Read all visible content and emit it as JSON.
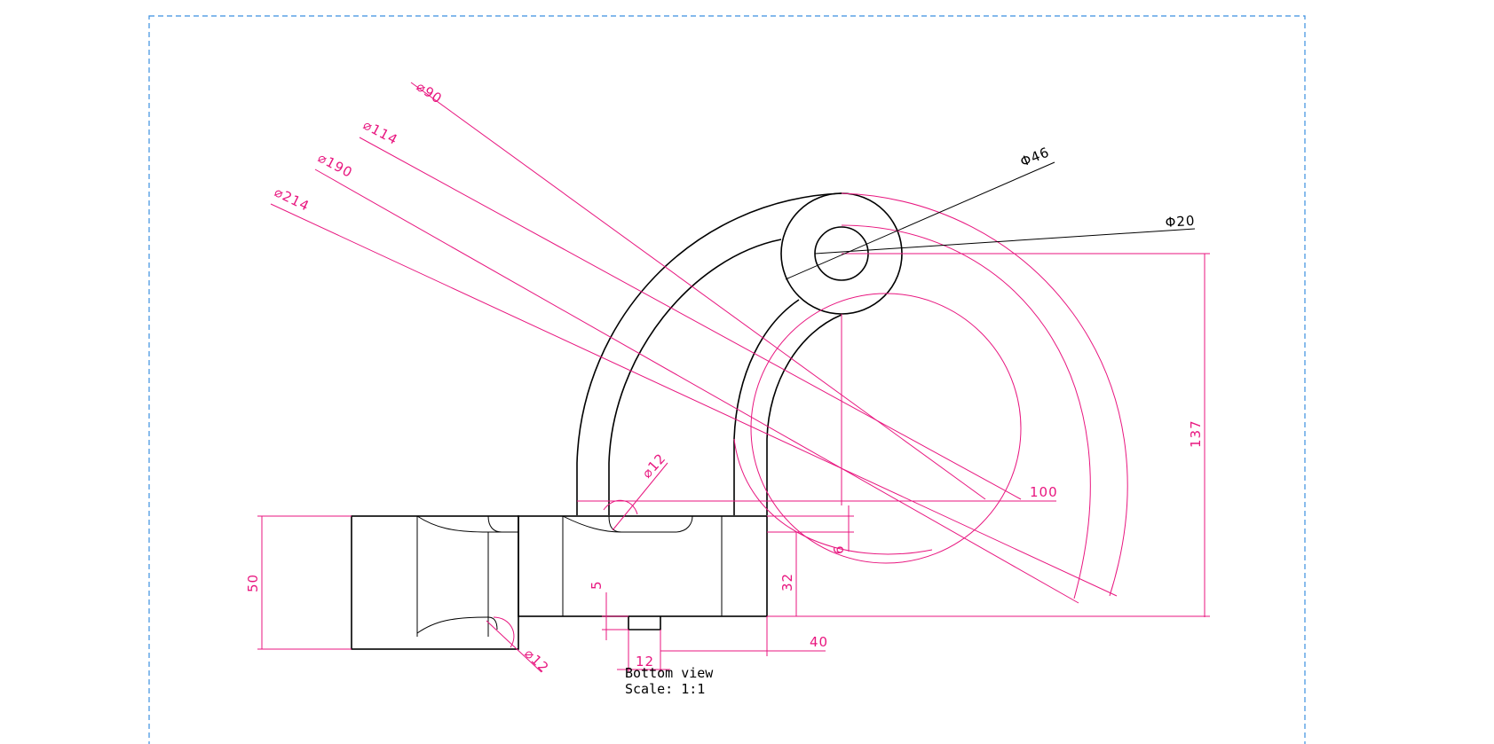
{
  "view": {
    "caption_line1": "Bottom view",
    "caption_line2": "Scale:  1:1"
  },
  "colors": {
    "dimension": "#e8167f",
    "geometry": "#000000",
    "frame": "#3b8fe0"
  },
  "dimensions": {
    "d90": "⌀90",
    "d114": "⌀114",
    "d190": "⌀190",
    "d214": "⌀214",
    "phi46": "Φ46",
    "phi20": "Φ20",
    "d12_top": "⌀12",
    "d12_bottom": "⌀12",
    "len100": "100",
    "len137": "137",
    "len6": "6",
    "len32": "32",
    "len50": "50",
    "len5": "5",
    "len12": "12",
    "len40": "40"
  }
}
